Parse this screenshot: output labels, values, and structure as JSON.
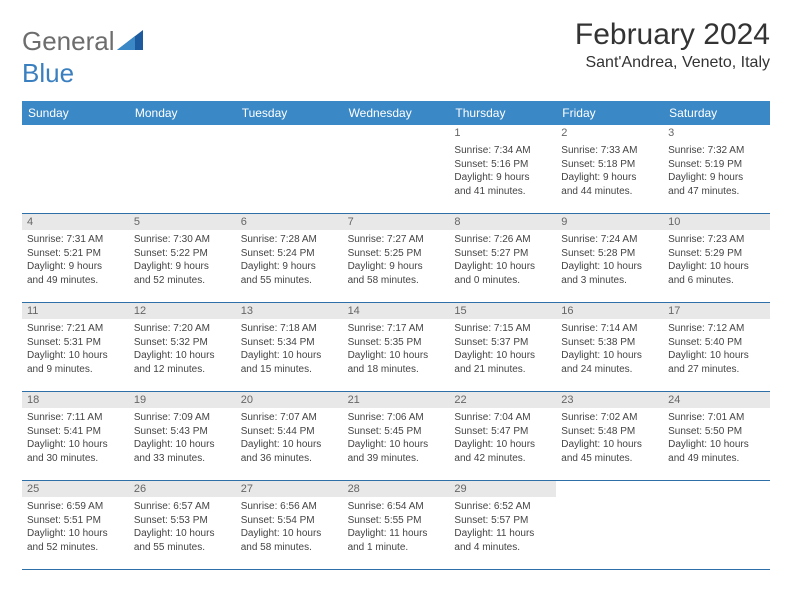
{
  "logo": {
    "text1": "General",
    "text2": "Blue"
  },
  "title": "February 2024",
  "location": "Sant'Andrea, Veneto, Italy",
  "colors": {
    "header_bg": "#3a88c6",
    "header_text": "#ffffff",
    "daynum_bg": "#e8e8e8",
    "border": "#2e6fa8",
    "logo_gray": "#6d6d6d",
    "logo_blue": "#3a7fbf"
  },
  "day_names": [
    "Sunday",
    "Monday",
    "Tuesday",
    "Wednesday",
    "Thursday",
    "Friday",
    "Saturday"
  ],
  "weeks": [
    [
      null,
      null,
      null,
      null,
      {
        "num": "1",
        "sunrise": "Sunrise: 7:34 AM",
        "sunset": "Sunset: 5:16 PM",
        "daylight1": "Daylight: 9 hours",
        "daylight2": "and 41 minutes."
      },
      {
        "num": "2",
        "sunrise": "Sunrise: 7:33 AM",
        "sunset": "Sunset: 5:18 PM",
        "daylight1": "Daylight: 9 hours",
        "daylight2": "and 44 minutes."
      },
      {
        "num": "3",
        "sunrise": "Sunrise: 7:32 AM",
        "sunset": "Sunset: 5:19 PM",
        "daylight1": "Daylight: 9 hours",
        "daylight2": "and 47 minutes."
      }
    ],
    [
      {
        "num": "4",
        "sunrise": "Sunrise: 7:31 AM",
        "sunset": "Sunset: 5:21 PM",
        "daylight1": "Daylight: 9 hours",
        "daylight2": "and 49 minutes."
      },
      {
        "num": "5",
        "sunrise": "Sunrise: 7:30 AM",
        "sunset": "Sunset: 5:22 PM",
        "daylight1": "Daylight: 9 hours",
        "daylight2": "and 52 minutes."
      },
      {
        "num": "6",
        "sunrise": "Sunrise: 7:28 AM",
        "sunset": "Sunset: 5:24 PM",
        "daylight1": "Daylight: 9 hours",
        "daylight2": "and 55 minutes."
      },
      {
        "num": "7",
        "sunrise": "Sunrise: 7:27 AM",
        "sunset": "Sunset: 5:25 PM",
        "daylight1": "Daylight: 9 hours",
        "daylight2": "and 58 minutes."
      },
      {
        "num": "8",
        "sunrise": "Sunrise: 7:26 AM",
        "sunset": "Sunset: 5:27 PM",
        "daylight1": "Daylight: 10 hours",
        "daylight2": "and 0 minutes."
      },
      {
        "num": "9",
        "sunrise": "Sunrise: 7:24 AM",
        "sunset": "Sunset: 5:28 PM",
        "daylight1": "Daylight: 10 hours",
        "daylight2": "and 3 minutes."
      },
      {
        "num": "10",
        "sunrise": "Sunrise: 7:23 AM",
        "sunset": "Sunset: 5:29 PM",
        "daylight1": "Daylight: 10 hours",
        "daylight2": "and 6 minutes."
      }
    ],
    [
      {
        "num": "11",
        "sunrise": "Sunrise: 7:21 AM",
        "sunset": "Sunset: 5:31 PM",
        "daylight1": "Daylight: 10 hours",
        "daylight2": "and 9 minutes."
      },
      {
        "num": "12",
        "sunrise": "Sunrise: 7:20 AM",
        "sunset": "Sunset: 5:32 PM",
        "daylight1": "Daylight: 10 hours",
        "daylight2": "and 12 minutes."
      },
      {
        "num": "13",
        "sunrise": "Sunrise: 7:18 AM",
        "sunset": "Sunset: 5:34 PM",
        "daylight1": "Daylight: 10 hours",
        "daylight2": "and 15 minutes."
      },
      {
        "num": "14",
        "sunrise": "Sunrise: 7:17 AM",
        "sunset": "Sunset: 5:35 PM",
        "daylight1": "Daylight: 10 hours",
        "daylight2": "and 18 minutes."
      },
      {
        "num": "15",
        "sunrise": "Sunrise: 7:15 AM",
        "sunset": "Sunset: 5:37 PM",
        "daylight1": "Daylight: 10 hours",
        "daylight2": "and 21 minutes."
      },
      {
        "num": "16",
        "sunrise": "Sunrise: 7:14 AM",
        "sunset": "Sunset: 5:38 PM",
        "daylight1": "Daylight: 10 hours",
        "daylight2": "and 24 minutes."
      },
      {
        "num": "17",
        "sunrise": "Sunrise: 7:12 AM",
        "sunset": "Sunset: 5:40 PM",
        "daylight1": "Daylight: 10 hours",
        "daylight2": "and 27 minutes."
      }
    ],
    [
      {
        "num": "18",
        "sunrise": "Sunrise: 7:11 AM",
        "sunset": "Sunset: 5:41 PM",
        "daylight1": "Daylight: 10 hours",
        "daylight2": "and 30 minutes."
      },
      {
        "num": "19",
        "sunrise": "Sunrise: 7:09 AM",
        "sunset": "Sunset: 5:43 PM",
        "daylight1": "Daylight: 10 hours",
        "daylight2": "and 33 minutes."
      },
      {
        "num": "20",
        "sunrise": "Sunrise: 7:07 AM",
        "sunset": "Sunset: 5:44 PM",
        "daylight1": "Daylight: 10 hours",
        "daylight2": "and 36 minutes."
      },
      {
        "num": "21",
        "sunrise": "Sunrise: 7:06 AM",
        "sunset": "Sunset: 5:45 PM",
        "daylight1": "Daylight: 10 hours",
        "daylight2": "and 39 minutes."
      },
      {
        "num": "22",
        "sunrise": "Sunrise: 7:04 AM",
        "sunset": "Sunset: 5:47 PM",
        "daylight1": "Daylight: 10 hours",
        "daylight2": "and 42 minutes."
      },
      {
        "num": "23",
        "sunrise": "Sunrise: 7:02 AM",
        "sunset": "Sunset: 5:48 PM",
        "daylight1": "Daylight: 10 hours",
        "daylight2": "and 45 minutes."
      },
      {
        "num": "24",
        "sunrise": "Sunrise: 7:01 AM",
        "sunset": "Sunset: 5:50 PM",
        "daylight1": "Daylight: 10 hours",
        "daylight2": "and 49 minutes."
      }
    ],
    [
      {
        "num": "25",
        "sunrise": "Sunrise: 6:59 AM",
        "sunset": "Sunset: 5:51 PM",
        "daylight1": "Daylight: 10 hours",
        "daylight2": "and 52 minutes."
      },
      {
        "num": "26",
        "sunrise": "Sunrise: 6:57 AM",
        "sunset": "Sunset: 5:53 PM",
        "daylight1": "Daylight: 10 hours",
        "daylight2": "and 55 minutes."
      },
      {
        "num": "27",
        "sunrise": "Sunrise: 6:56 AM",
        "sunset": "Sunset: 5:54 PM",
        "daylight1": "Daylight: 10 hours",
        "daylight2": "and 58 minutes."
      },
      {
        "num": "28",
        "sunrise": "Sunrise: 6:54 AM",
        "sunset": "Sunset: 5:55 PM",
        "daylight1": "Daylight: 11 hours",
        "daylight2": "and 1 minute."
      },
      {
        "num": "29",
        "sunrise": "Sunrise: 6:52 AM",
        "sunset": "Sunset: 5:57 PM",
        "daylight1": "Daylight: 11 hours",
        "daylight2": "and 4 minutes."
      },
      null,
      null
    ]
  ]
}
